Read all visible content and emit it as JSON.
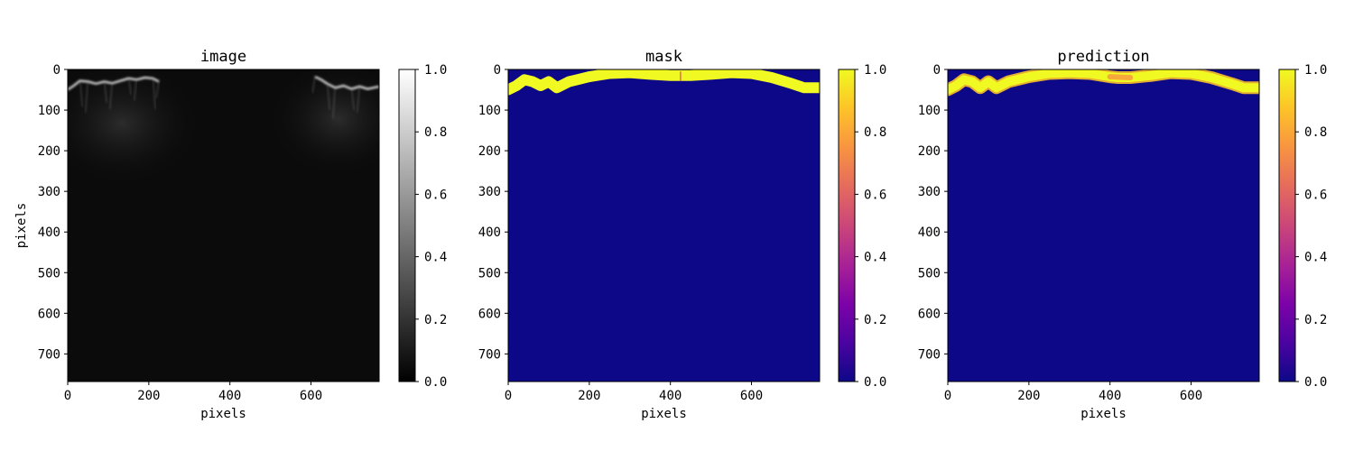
{
  "chart_data": [
    {
      "type": "heatmap",
      "title": "image",
      "xlabel": "pixels",
      "ylabel": "pixels",
      "xlim": [
        0,
        768
      ],
      "ylim": [
        768,
        0
      ],
      "xticks": [
        0,
        200,
        400,
        600
      ],
      "yticks": [
        0,
        100,
        200,
        300,
        400,
        500,
        600,
        700
      ],
      "colormap": "gray",
      "colorbar": {
        "range": [
          0.0,
          1.0
        ],
        "ticks": [
          "0.0",
          "0.2",
          "0.4",
          "0.6",
          "0.8",
          "1.0"
        ]
      },
      "content": "dark grayscale ultrasound-like image with bright irregular boundary near rows 20-60 at left and right sides"
    },
    {
      "type": "heatmap",
      "title": "mask",
      "xlabel": "pixels",
      "ylabel": "",
      "xlim": [
        0,
        768
      ],
      "ylim": [
        768,
        0
      ],
      "xticks": [
        0,
        200,
        400,
        600
      ],
      "yticks": [
        0,
        100,
        200,
        300,
        400,
        500,
        600,
        700
      ],
      "colormap": "plasma",
      "colorbar": {
        "range": [
          0.0,
          1.0
        ],
        "ticks": [
          "0.0",
          "0.2",
          "0.4",
          "0.6",
          "0.8",
          "1.0"
        ]
      },
      "boundary": {
        "x": [
          0,
          20,
          40,
          60,
          80,
          100,
          120,
          150,
          200,
          250,
          300,
          350,
          400,
          420,
          450,
          500,
          550,
          600,
          650,
          700,
          730,
          768
        ],
        "y": [
          50,
          40,
          25,
          30,
          40,
          30,
          45,
          30,
          18,
          10,
          8,
          12,
          15,
          15,
          15,
          12,
          8,
          10,
          20,
          35,
          45,
          45
        ]
      }
    },
    {
      "type": "heatmap",
      "title": "prediction",
      "xlabel": "pixels",
      "ylabel": "",
      "xlim": [
        0,
        768
      ],
      "ylim": [
        768,
        0
      ],
      "xticks": [
        0,
        200,
        400,
        600
      ],
      "yticks": [
        0,
        100,
        200,
        300,
        400,
        500,
        600,
        700
      ],
      "colormap": "plasma",
      "colorbar": {
        "range": [
          0.0,
          1.0
        ],
        "ticks": [
          "0.0",
          "0.2",
          "0.4",
          "0.6",
          "0.8",
          "1.0"
        ]
      },
      "boundary": {
        "x": [
          0,
          20,
          40,
          60,
          80,
          100,
          120,
          150,
          200,
          250,
          300,
          350,
          400,
          420,
          450,
          500,
          550,
          600,
          650,
          700,
          730,
          768
        ],
        "y": [
          50,
          40,
          25,
          30,
          45,
          30,
          45,
          30,
          18,
          10,
          8,
          10,
          18,
          20,
          20,
          15,
          8,
          10,
          20,
          35,
          45,
          45
        ]
      }
    }
  ]
}
